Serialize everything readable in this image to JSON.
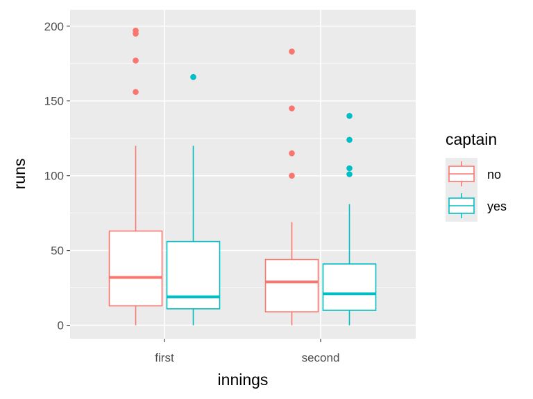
{
  "chart_data": {
    "type": "boxplot",
    "xlabel": "innings",
    "ylabel": "runs",
    "categories": [
      "first",
      "second"
    ],
    "ylim": [
      -9,
      211
    ],
    "yticks": [
      0,
      50,
      100,
      150,
      200
    ],
    "grid": true,
    "legend": {
      "title": "captain",
      "position": "right",
      "entries": [
        "no",
        "yes"
      ]
    },
    "series": [
      {
        "name": "no",
        "color": "#F8766D",
        "boxes": [
          {
            "category": "first",
            "min": 0,
            "q1": 13,
            "median": 32,
            "q3": 63,
            "max": 120,
            "outliers": [
              156,
              177,
              195,
              197
            ]
          },
          {
            "category": "second",
            "min": 0,
            "q1": 9,
            "median": 29,
            "q3": 44,
            "max": 69,
            "outliers": [
              100,
              115,
              145,
              183
            ]
          }
        ]
      },
      {
        "name": "yes",
        "color": "#00BFC4",
        "boxes": [
          {
            "category": "first",
            "min": 0,
            "q1": 11,
            "median": 19,
            "q3": 56,
            "max": 120,
            "outliers": [
              166
            ]
          },
          {
            "category": "second",
            "min": 0,
            "q1": 10,
            "median": 21,
            "q3": 41,
            "max": 81,
            "outliers": [
              101,
              105,
              124,
              140
            ]
          }
        ]
      }
    ]
  }
}
